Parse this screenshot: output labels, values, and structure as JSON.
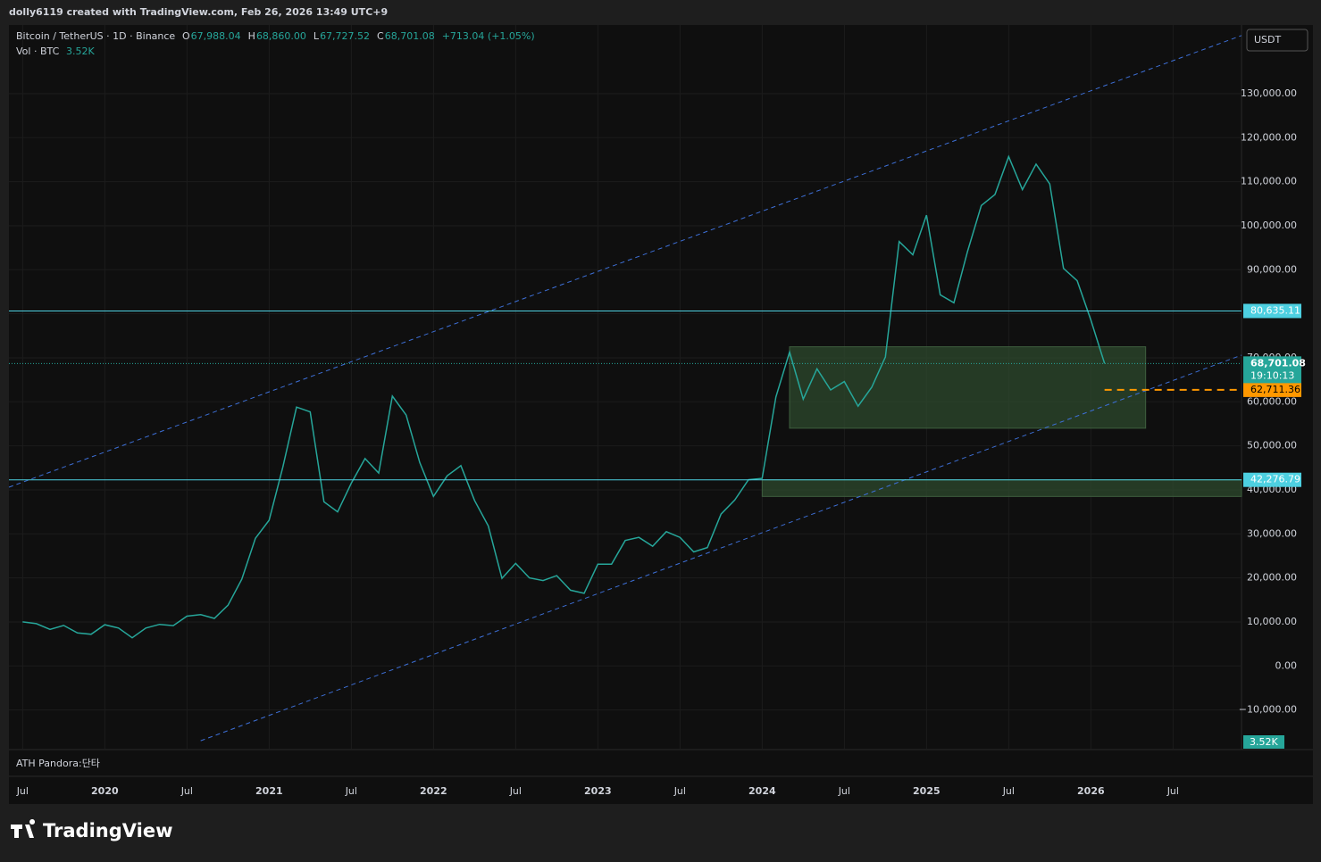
{
  "header": {
    "author_line": "dolly6119 created with TradingView.com, Feb 26, 2026 13:49 UTC+9"
  },
  "footer": {
    "brand": "TradingView"
  },
  "chart_data": {
    "type": "line",
    "title": "Bitcoin / TetherUS · 1D · Binance",
    "ohlc": [
      {
        "label": "O",
        "value": "67,988.04"
      },
      {
        "label": "H",
        "value": "68,860.00"
      },
      {
        "label": "L",
        "value": "67,727.52"
      },
      {
        "label": "C",
        "value": "68,701.08"
      }
    ],
    "change": "+713.04 (+1.05%)",
    "volume_label": "Vol · BTC",
    "volume_value": "3.52K",
    "currency": "USDT",
    "indicator": "ATH Pandora:단타",
    "x": [
      "2019-07",
      "2019-08",
      "2019-09",
      "2019-10",
      "2019-11",
      "2019-12",
      "2020-01",
      "2020-02",
      "2020-03",
      "2020-04",
      "2020-05",
      "2020-06",
      "2020-07",
      "2020-08",
      "2020-09",
      "2020-10",
      "2020-11",
      "2020-12",
      "2021-01",
      "2021-02",
      "2021-03",
      "2021-04",
      "2021-05",
      "2021-06",
      "2021-07",
      "2021-08",
      "2021-09",
      "2021-10",
      "2021-11",
      "2021-12",
      "2022-01",
      "2022-02",
      "2022-03",
      "2022-04",
      "2022-05",
      "2022-06",
      "2022-07",
      "2022-08",
      "2022-09",
      "2022-10",
      "2022-11",
      "2022-12",
      "2023-01",
      "2023-02",
      "2023-03",
      "2023-04",
      "2023-05",
      "2023-06",
      "2023-07",
      "2023-08",
      "2023-09",
      "2023-10",
      "2023-11",
      "2023-12",
      "2024-01",
      "2024-02",
      "2024-03",
      "2024-04",
      "2024-05",
      "2024-06",
      "2024-07",
      "2024-08",
      "2024-09",
      "2024-10",
      "2024-11",
      "2024-12",
      "2025-01",
      "2025-02",
      "2025-03",
      "2025-04",
      "2025-05",
      "2025-06",
      "2025-07",
      "2025-08",
      "2025-09",
      "2025-10",
      "2025-11",
      "2025-12",
      "2026-01",
      "2026-02"
    ],
    "series": [
      {
        "name": "BTCUSDT",
        "color": "#26a69a",
        "values": [
          10000,
          9600,
          8300,
          9200,
          7500,
          7200,
          9350,
          8600,
          6400,
          8600,
          9450,
          9150,
          11300,
          11650,
          10800,
          13800,
          19700,
          29000,
          33100,
          45200,
          58800,
          57700,
          37300,
          35000,
          41500,
          47100,
          43800,
          61300,
          57000,
          46200,
          38500,
          43200,
          45500,
          37600,
          31800,
          19900,
          23300,
          20000,
          19400,
          20500,
          17200,
          16500,
          23100,
          23100,
          28500,
          29200,
          27200,
          30500,
          29200,
          25900,
          26900,
          34500,
          37700,
          42300,
          42600,
          61100,
          71300,
          60600,
          67500,
          62700,
          64600,
          59000,
          63300,
          70200,
          96400,
          93400,
          102400,
          84300,
          82500,
          94200,
          104600,
          107100,
          115700,
          108200,
          114000,
          109500,
          90300,
          87500,
          78600,
          68701.08
        ]
      }
    ],
    "xlim": [
      "2019-06",
      "2026-12"
    ],
    "xticks": [
      {
        "value": "2019-07",
        "label": "Jul"
      },
      {
        "value": "2020-01",
        "label": "2020"
      },
      {
        "value": "2020-07",
        "label": "Jul"
      },
      {
        "value": "2021-01",
        "label": "2021"
      },
      {
        "value": "2021-07",
        "label": "Jul"
      },
      {
        "value": "2022-01",
        "label": "2022"
      },
      {
        "value": "2022-07",
        "label": "Jul"
      },
      {
        "value": "2023-01",
        "label": "2023"
      },
      {
        "value": "2023-07",
        "label": "Jul"
      },
      {
        "value": "2024-01",
        "label": "2024"
      },
      {
        "value": "2024-07",
        "label": "Jul"
      },
      {
        "value": "2025-01",
        "label": "2025"
      },
      {
        "value": "2025-07",
        "label": "Jul"
      },
      {
        "value": "2026-01",
        "label": "2026"
      },
      {
        "value": "2026-07",
        "label": "Jul"
      }
    ],
    "ylim": [
      -19000,
      145600
    ],
    "yticks": [
      {
        "value": -10000,
        "label": "−10,000.00"
      },
      {
        "value": 0,
        "label": "0.00"
      },
      {
        "value": 10000,
        "label": "10,000.00"
      },
      {
        "value": 20000,
        "label": "20,000.00"
      },
      {
        "value": 30000,
        "label": "30,000.00"
      },
      {
        "value": 40000,
        "label": "40,000.00"
      },
      {
        "value": 50000,
        "label": "50,000.00"
      },
      {
        "value": 60000,
        "label": "60,000.00"
      },
      {
        "value": 70000,
        "label": "70,000.00"
      },
      {
        "value": 80000,
        "label": "80,000.00"
      },
      {
        "value": 90000,
        "label": "90,000.00"
      },
      {
        "value": 100000,
        "label": "100,000.00"
      },
      {
        "value": 110000,
        "label": "110,000.00"
      },
      {
        "value": 120000,
        "label": "120,000.00"
      },
      {
        "value": 130000,
        "label": "130,000.00"
      }
    ],
    "grid": true,
    "levels": [
      {
        "value": 80635.11,
        "label": "80,635.11",
        "color": "#4dd0e1",
        "style": "solid"
      },
      {
        "value": 42276.79,
        "label": "42,276.79",
        "color": "#4dd0e1",
        "style": "solid"
      },
      {
        "value": 62711.36,
        "label": "62,711.36",
        "color": "#ff9800",
        "style": "dashed"
      }
    ],
    "last_price": {
      "value": 68701.08,
      "label": "68,701.08",
      "countdown": "19:10:13",
      "color": "#26a69a"
    },
    "zones": [
      {
        "x": [
          "2024-03",
          "2026-05"
        ],
        "y": [
          54000,
          72500
        ],
        "color": "#2e4a2e"
      },
      {
        "x": [
          "2024-01",
          "2026-12"
        ],
        "y": [
          38500,
          42276.79
        ],
        "color": "#2e4a2e"
      }
    ],
    "channel": [
      {
        "x": [
          "2019-06",
          "2026-12"
        ],
        "y": [
          40600,
          143200
        ],
        "color": "#3d6fd6"
      },
      {
        "x": [
          "2020-08",
          "2026-12"
        ],
        "y": [
          -17000,
          70600
        ],
        "color": "#3d6fd6"
      }
    ]
  }
}
